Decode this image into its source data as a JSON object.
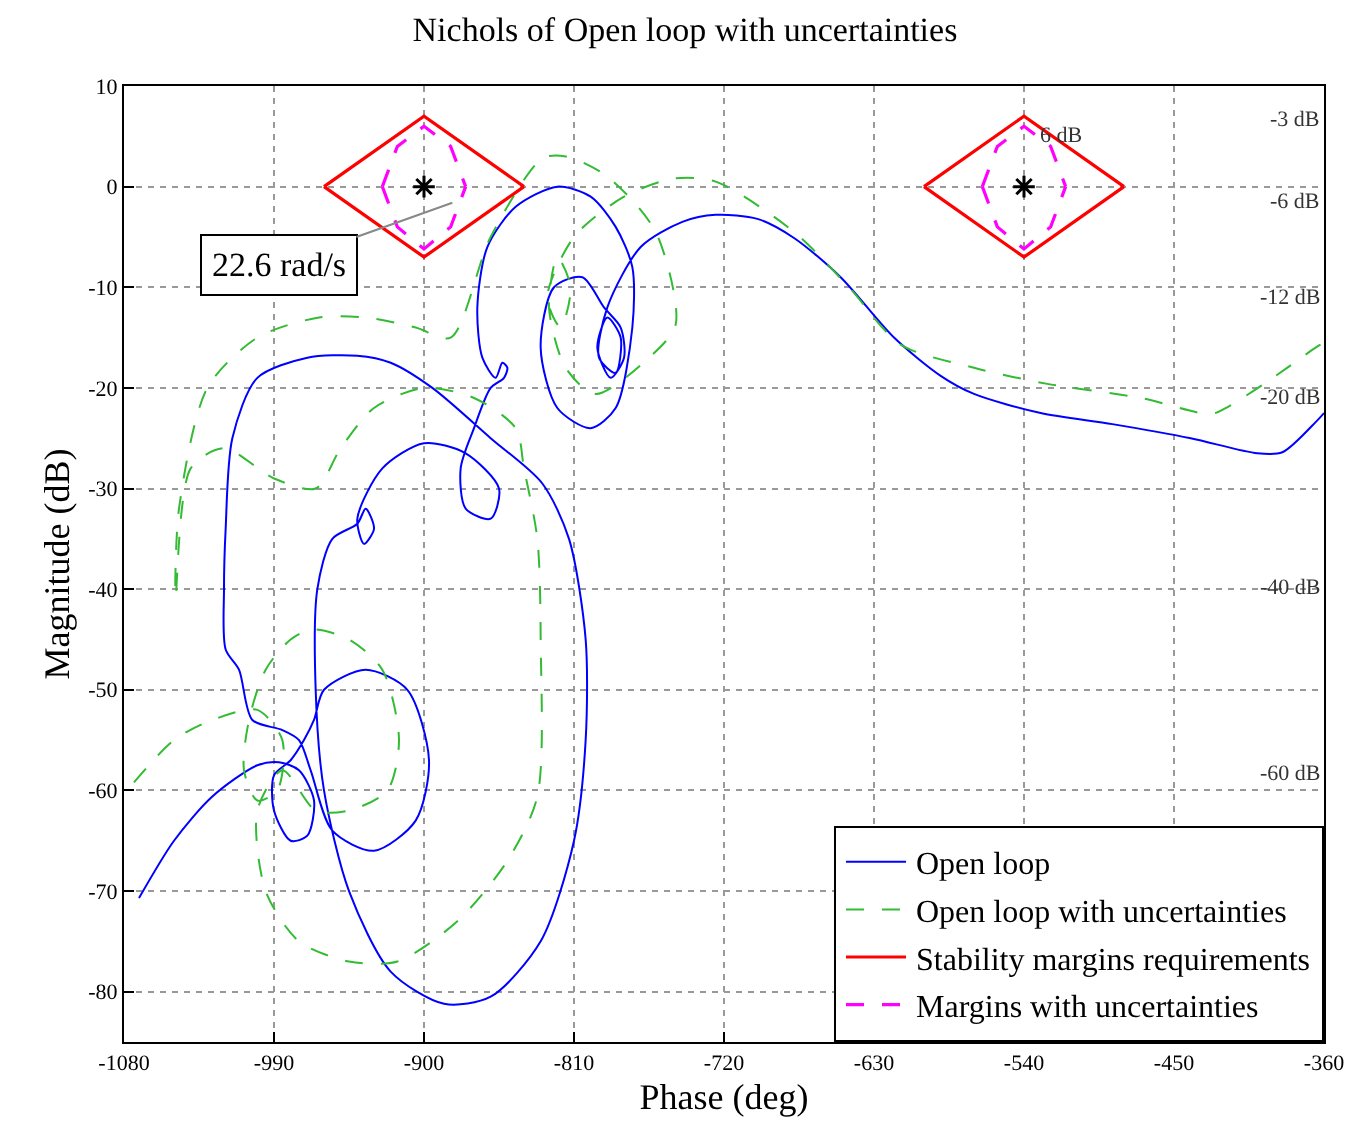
{
  "chart_data": {
    "type": "line",
    "title": "Nichols of Open loop with uncertainties",
    "xlabel": "Phase (deg)",
    "ylabel": "Magnitude (dB)",
    "xlim": [
      -1080,
      -360
    ],
    "xticks": [
      -1080,
      -990,
      -900,
      -810,
      -720,
      -630,
      -540,
      -450,
      -360
    ],
    "ylim": [
      -85,
      10
    ],
    "yticks": [
      -80,
      -70,
      -60,
      -50,
      -40,
      -30,
      -20,
      -10,
      0,
      10
    ],
    "grid": true,
    "legend": "bottom right",
    "series": [
      {
        "name": "Open loop",
        "color": "#0000ff",
        "line_style": "solid",
        "x": [
          -1071,
          -1050,
          -1027,
          -1000,
          -987,
          -975,
          -966,
          -970,
          -980,
          -990,
          -990,
          -980,
          -972,
          -966,
          -960,
          -935,
          -910,
          -897,
          -905,
          -930,
          -955,
          -968,
          -975,
          -985,
          -1003,
          -1011,
          -1019,
          -1020,
          -1019,
          -1015,
          -1000,
          -970,
          -940,
          -920,
          -895,
          -860,
          -829,
          -813,
          -803,
          -803,
          -810,
          -830,
          -860,
          -888,
          -920,
          -945,
          -960,
          -965,
          -964,
          -955,
          -940,
          -935,
          -930,
          -936,
          -940,
          -925,
          -900,
          -875,
          -855,
          -860,
          -875,
          -878,
          -870,
          -860,
          -852,
          -850,
          -853,
          -857,
          -865,
          -868,
          -862,
          -845,
          -820,
          -800,
          -785,
          -775,
          -775,
          -785,
          -800,
          -820,
          -830,
          -822,
          -805,
          -792,
          -782,
          -780,
          -788,
          -796,
          -790,
          -782,
          -785,
          -795,
          -790,
          -770,
          -745,
          -725,
          -700,
          -678,
          -650,
          -618,
          -590,
          -570,
          -530,
          -487,
          -440,
          -400,
          -385,
          -365,
          -360
        ],
        "values": [
          -70.7,
          -65,
          -60.6,
          -57.5,
          -57.2,
          -58,
          -61,
          -64.5,
          -65,
          -62,
          -58.5,
          -57,
          -55,
          -53,
          -50,
          -48,
          -50,
          -57,
          -63,
          -66,
          -64,
          -58,
          -55,
          -54,
          -53,
          -48,
          -46,
          -40,
          -34,
          -25,
          -19,
          -17,
          -16.8,
          -17.5,
          -20,
          -25,
          -29.5,
          -35,
          -45,
          -55,
          -65,
          -75,
          -80.5,
          -81.2,
          -78,
          -70,
          -60,
          -50,
          -40,
          -35,
          -33.5,
          -32,
          -34,
          -35.5,
          -33,
          -28,
          -25.5,
          -26.5,
          -30,
          -33,
          -32,
          -28,
          -24,
          -20,
          -19,
          -18,
          -17.5,
          -19,
          -17,
          -12,
          -6,
          -2,
          0,
          -1,
          -4,
          -8,
          -14,
          -22,
          -24,
          -22,
          -16,
          -10,
          -9,
          -12,
          -14,
          -17,
          -19,
          -16,
          -13,
          -15,
          -18.5,
          -17,
          -12,
          -6,
          -3.5,
          -2.8,
          -3.2,
          -5.1,
          -9,
          -15,
          -18.8,
          -20.6,
          -22.5,
          -23.6,
          -25,
          -26.5,
          -26.4,
          -23.4,
          -22.5
        ]
      },
      {
        "name": "Open loop with uncertainties",
        "color": "#33bb33",
        "line_style": "dashed",
        "x": [
          -1074,
          -1050,
          -1027,
          -1000,
          -985,
          -988,
          -1000,
          -1008,
          -1005,
          -995,
          -980,
          -967,
          -945,
          -925,
          -915,
          -922,
          -945,
          -965,
          -985,
          -1000,
          -995,
          -975,
          -945,
          -916,
          -880,
          -850,
          -832,
          -830,
          -832,
          -840,
          -845,
          -870,
          -900,
          -930,
          -950,
          -965,
          -990,
          -1020,
          -1040,
          -1049,
          -1047,
          -1030,
          -1000,
          -963,
          -935,
          -905,
          -884,
          -860,
          -829,
          -815,
          -790,
          -761,
          -749,
          -765,
          -797,
          -815,
          -825,
          -820,
          -812,
          -818,
          -826,
          -810,
          -780,
          -750,
          -725,
          -678,
          -645,
          -614,
          -570,
          -526,
          -470,
          -428,
          -419,
          -395,
          -365,
          -360
        ],
        "values": [
          -59.2,
          -55,
          -53,
          -52,
          -55,
          -60,
          -61,
          -58,
          -53,
          -48,
          -45,
          -44,
          -45,
          -48,
          -55,
          -60,
          -62,
          -62,
          -58,
          -62,
          -70,
          -75,
          -77,
          -77,
          -73,
          -67,
          -60.6,
          -45,
          -35,
          -28,
          -24,
          -21,
          -20,
          -22,
          -26,
          -30,
          -29,
          -26,
          -28,
          -40.8,
          -32,
          -20,
          -15,
          -13,
          -13,
          -14,
          -15,
          -5,
          2.8,
          3,
          1,
          -4.5,
          -13.7,
          -17,
          -20.6,
          -18,
          -12,
          -7,
          -10,
          -14,
          -11,
          -5,
          -1,
          0.8,
          0.5,
          -4.5,
          -10,
          -15.7,
          -18,
          -19.6,
          -21,
          -22.6,
          -22,
          -19.5,
          -16,
          -15.5
        ]
      },
      {
        "name": "Stability margins requirements",
        "color": "#ff0000",
        "line_style": "solid",
        "x": [
          -960,
          -900,
          -840
        ],
        "values": [
          0,
          7,
          0
        ]
      },
      {
        "color": "#ff0000",
        "line_style": "solid",
        "x": [
          -960,
          -900,
          -840
        ],
        "values": [
          0,
          -7,
          0
        ]
      },
      {
        "color": "#ff0000",
        "line_style": "solid",
        "x": [
          -600,
          -540,
          -480
        ],
        "values": [
          0,
          7,
          0
        ]
      },
      {
        "color": "#ff0000",
        "line_style": "solid",
        "x": [
          -600,
          -540,
          -480
        ],
        "values": [
          0,
          -7,
          0
        ]
      },
      {
        "name": "Margins with uncertainties",
        "color": "#ff00ff",
        "line_style": "dashed",
        "x": [
          -925,
          -916,
          -900,
          -884,
          -875
        ],
        "values": [
          0,
          4,
          6,
          4,
          0
        ]
      },
      {
        "color": "#ff00ff",
        "line_style": "dashed",
        "x": [
          -925,
          -916,
          -900,
          -884,
          -875
        ],
        "values": [
          0,
          -4,
          -6.2,
          -4,
          0
        ]
      },
      {
        "color": "#ff00ff",
        "line_style": "dashed",
        "x": [
          -565,
          -556,
          -540,
          -524,
          -515
        ],
        "values": [
          0,
          4,
          6,
          4,
          0
        ]
      },
      {
        "color": "#ff00ff",
        "line_style": "dashed",
        "x": [
          -565,
          -556,
          -540,
          -524,
          -515
        ],
        "values": [
          0,
          -4,
          -6.2,
          -4,
          0
        ]
      },
      {
        "type": "scatter",
        "color": "#000000",
        "marker": "cross",
        "x": [
          -900,
          -540
        ],
        "values": [
          0,
          0
        ]
      }
    ],
    "annotations": [
      {
        "text": "22.6 rad/s",
        "x": -883,
        "y": -1.6
      },
      "-3 dB",
      "6 dB",
      "-6 dB",
      "-12 dB",
      "-20 dB",
      "-40 dB",
      "-60 dB"
    ]
  }
}
